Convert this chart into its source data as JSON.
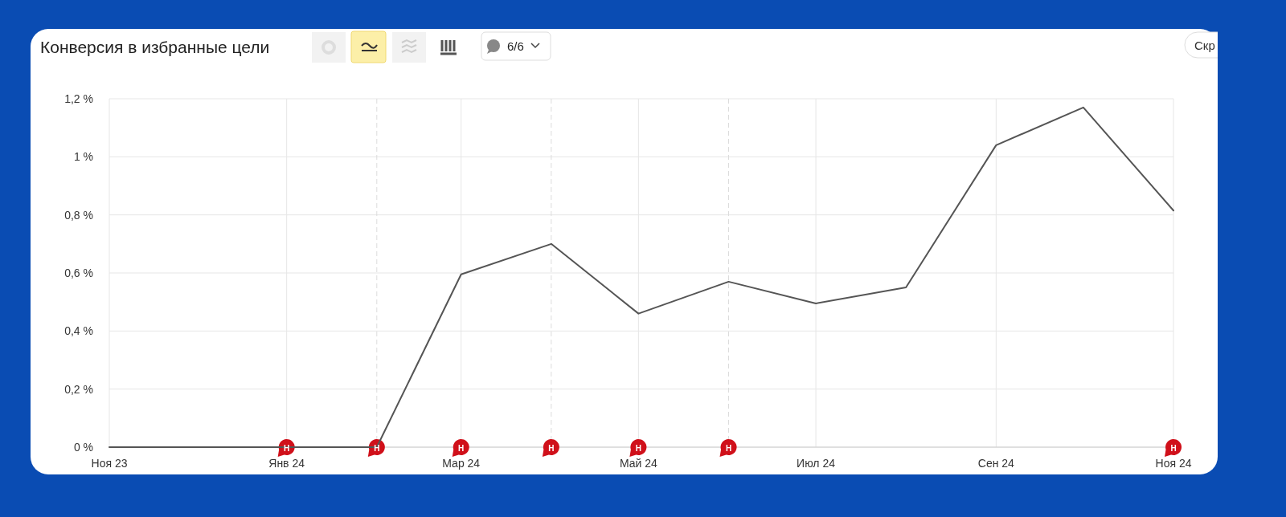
{
  "chart_data": {
    "type": "line",
    "title": "Конверсия в избранные цели",
    "x": [
      "2023-11",
      "2023-12",
      "2024-01",
      "2024-02",
      "2024-03",
      "2024-04",
      "2024-05",
      "2024-06",
      "2024-07",
      "2024-08",
      "2024-09",
      "2024-10",
      "2024-11"
    ],
    "series": [
      {
        "color": "#555555",
        "values": [
          0,
          0,
          0,
          0,
          0.595,
          0.7,
          0.46,
          0.57,
          0.495,
          0.55,
          1.04,
          1.17,
          0.815
        ]
      }
    ],
    "xlim": [
      "2023-11",
      "2024-11"
    ],
    "xticks": [
      {
        "value": "2023-11",
        "label": "Ноя 23"
      },
      {
        "value": "2024-01",
        "label": "Янв 24"
      },
      {
        "value": "2024-03",
        "label": "Мар 24"
      },
      {
        "value": "2024-05",
        "label": "Май 24"
      },
      {
        "value": "2024-07",
        "label": "Июл 24"
      },
      {
        "value": "2024-09",
        "label": "Сен 24"
      },
      {
        "value": "2024-11",
        "label": "Ноя 24"
      }
    ],
    "ylim": [
      0,
      1.2
    ],
    "yticks": [
      {
        "value": 0,
        "label": "0 %"
      },
      {
        "value": 0.2,
        "label": "0,2 %"
      },
      {
        "value": 0.4,
        "label": "0,4 %"
      },
      {
        "value": 0.6,
        "label": "0,6 %"
      },
      {
        "value": 0.8,
        "label": "0,8 %"
      },
      {
        "value": 1,
        "label": "1 %"
      },
      {
        "value": 1.2,
        "label": "1,2 %"
      }
    ],
    "grid": true,
    "marker": "none",
    "line_style": "solid",
    "ref_lines": [
      {
        "axis": "x",
        "value": "2024-02",
        "line_style": "dashed"
      },
      {
        "axis": "x",
        "value": "2024-04",
        "line_style": "dashed"
      },
      {
        "axis": "x",
        "value": "2024-06",
        "line_style": "dashed"
      }
    ],
    "annotations": [
      "6/6",
      "Скр",
      {
        "text": "Н",
        "x": "2024-01",
        "y": 0
      },
      {
        "text": "Н",
        "x": "2024-02",
        "y": 0
      },
      {
        "text": "Н",
        "x": "2024-03",
        "y": 0
      },
      {
        "text": "Н",
        "x": "2024-04",
        "y": 0
      },
      {
        "text": "Н",
        "x": "2024-05",
        "y": 0
      },
      {
        "text": "Н",
        "x": "2024-06",
        "y": 0
      },
      {
        "text": "Н",
        "x": "2024-11",
        "y": 0
      }
    ]
  }
}
